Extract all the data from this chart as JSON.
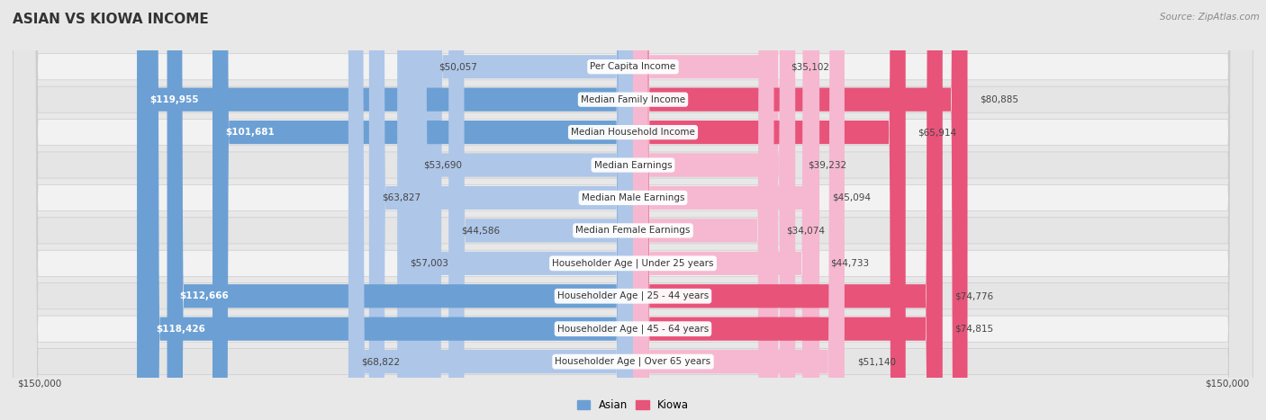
{
  "title": "ASIAN VS KIOWA INCOME",
  "source": "Source: ZipAtlas.com",
  "categories": [
    "Per Capita Income",
    "Median Family Income",
    "Median Household Income",
    "Median Earnings",
    "Median Male Earnings",
    "Median Female Earnings",
    "Householder Age | Under 25 years",
    "Householder Age | 25 - 44 years",
    "Householder Age | 45 - 64 years",
    "Householder Age | Over 65 years"
  ],
  "asian_values": [
    50057,
    119955,
    101681,
    53690,
    63827,
    44586,
    57003,
    112666,
    118426,
    68822
  ],
  "kiowa_values": [
    35102,
    80885,
    65914,
    39232,
    45094,
    34074,
    44733,
    74776,
    74815,
    51140
  ],
  "asian_color_light": "#aec6e8",
  "asian_color_dark": "#6ca0d4",
  "kiowa_color_light": "#f5b8d0",
  "kiowa_color_dark": "#e8537a",
  "asian_dark_threshold": 80000,
  "kiowa_dark_threshold": 65000,
  "max_value": 150000,
  "bg_color": "#e8e8e8",
  "row_bg": "#f2f2f2",
  "row_bg_alt": "#e5e5e5",
  "title_fontsize": 11,
  "label_fontsize": 7.5,
  "value_fontsize": 7.5,
  "legend_fontsize": 8.5,
  "source_fontsize": 7.5
}
